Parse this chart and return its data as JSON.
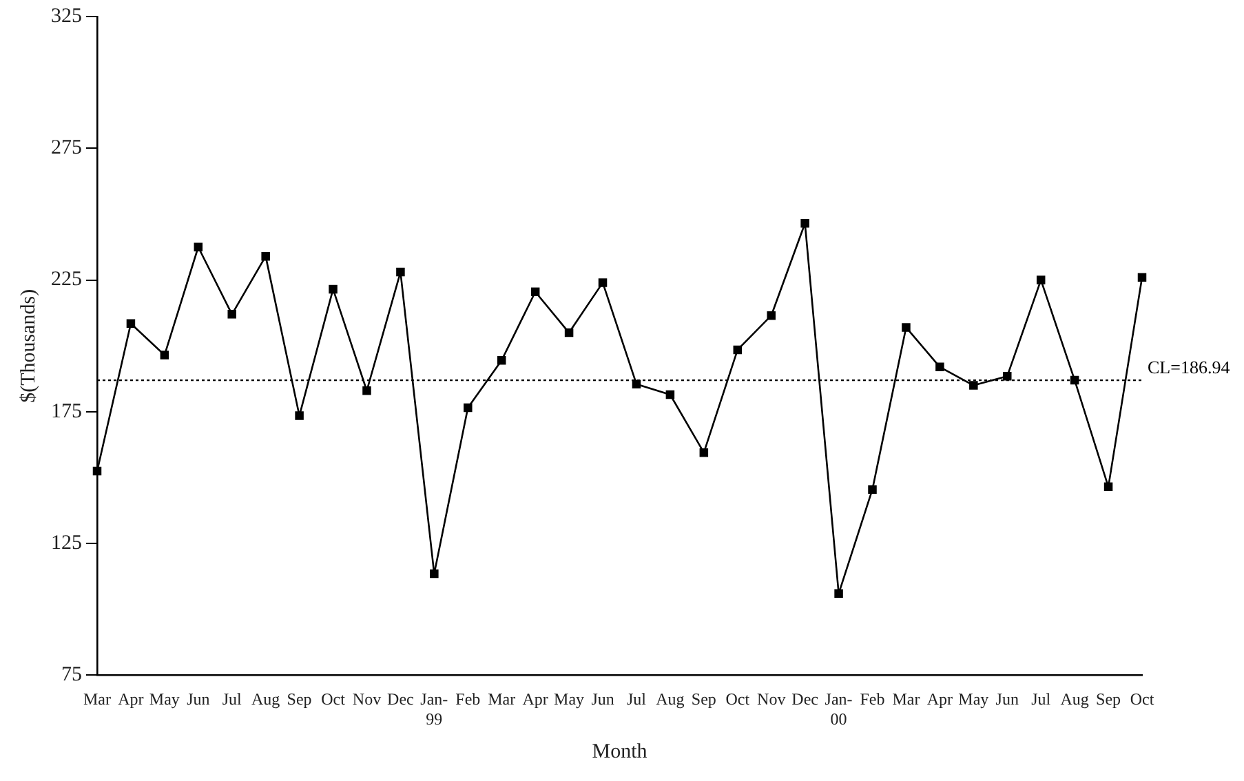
{
  "chart_data": {
    "type": "line",
    "xlabel": "Month",
    "ylabel": "$(Thousands)",
    "categories": [
      "Mar",
      "Apr",
      "May",
      "Jun",
      "Jul",
      "Aug",
      "Sep",
      "Oct",
      "Nov",
      "Dec",
      "Jan-99",
      "Feb",
      "Mar",
      "Apr",
      "May",
      "Jun",
      "Jul",
      "Aug",
      "Sep",
      "Oct",
      "Nov",
      "Dec",
      "Jan-00",
      "Feb",
      "Mar",
      "Apr",
      "May",
      "Jun",
      "Jul",
      "Aug",
      "Sep",
      "Oct"
    ],
    "series": [
      {
        "color": "#000000",
        "values": [
          152.5,
          208.5,
          196.5,
          237.5,
          212,
          234,
          173.5,
          221.5,
          183,
          228,
          113.5,
          176.5,
          194.5,
          220.5,
          205,
          224,
          185.5,
          181.5,
          159.5,
          198.5,
          211.5,
          246.5,
          106,
          145.5,
          207,
          192,
          185,
          188.5,
          225,
          187,
          146.5,
          226
        ]
      }
    ],
    "ylim": [
      75,
      325
    ],
    "yticks": [
      75,
      125,
      175,
      225,
      275,
      325
    ],
    "grid": false,
    "legend": false,
    "marker": "square",
    "line_style": "solid",
    "ref_lines": [
      {
        "axis": "y",
        "value": 186.94,
        "label": "CL=186.94",
        "line_style": "dotted",
        "color": "#000000"
      }
    ]
  }
}
